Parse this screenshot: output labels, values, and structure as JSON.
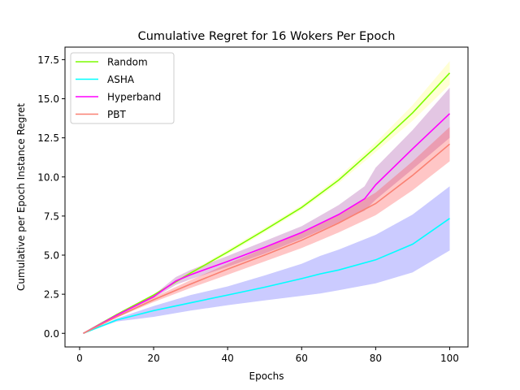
{
  "chart_data": {
    "type": "line",
    "title": "Cumulative Regret for 16 Wokers Per Epoch",
    "xlabel": "Epochs",
    "ylabel": "Cumulative per Epoch Instance Regret",
    "xlim": [
      -3.95,
      104.95
    ],
    "ylim": [
      -0.87,
      18.3
    ],
    "xticks": [
      0,
      20,
      40,
      60,
      80,
      100
    ],
    "xtick_labels": [
      "0",
      "20",
      "40",
      "60",
      "80",
      "100"
    ],
    "yticks": [
      0,
      2.5,
      5,
      7.5,
      10,
      12.5,
      15,
      17.5
    ],
    "ytick_labels": [
      "0.0",
      "2.5",
      "5.0",
      "7.5",
      "10.0",
      "12.5",
      "15.0",
      "17.5"
    ],
    "grid": false,
    "legend_position": "upper-left",
    "series": [
      {
        "name": "Random",
        "color": "#7cfc00",
        "band_color": "#ffff66",
        "x": [
          1,
          10,
          20,
          30,
          40,
          50,
          60,
          70,
          80,
          90,
          100
        ],
        "y": [
          0,
          1.2,
          2.45,
          3.85,
          5.2,
          6.6,
          8.05,
          9.8,
          11.9,
          14.1,
          16.65
        ],
        "lower": [
          0,
          1.15,
          2.4,
          3.75,
          5.05,
          6.45,
          7.9,
          9.6,
          11.6,
          13.6,
          15.9
        ],
        "upper": [
          0,
          1.25,
          2.5,
          3.95,
          5.35,
          6.75,
          8.2,
          10.0,
          12.2,
          14.6,
          17.4
        ]
      },
      {
        "name": "ASHA",
        "color": "#00ffff",
        "band_color": "#4444ff",
        "x": [
          1,
          10,
          20,
          30,
          40,
          50,
          60,
          65,
          70,
          80,
          90,
          100
        ],
        "y": [
          0,
          0.85,
          1.45,
          1.95,
          2.45,
          2.95,
          3.5,
          3.8,
          4.05,
          4.7,
          5.7,
          7.35
        ],
        "lower": [
          0,
          0.75,
          1.05,
          1.45,
          1.8,
          2.1,
          2.4,
          2.55,
          2.75,
          3.2,
          3.9,
          5.3
        ],
        "upper": [
          0,
          0.95,
          1.75,
          2.45,
          3.0,
          3.7,
          4.45,
          4.95,
          5.35,
          6.3,
          7.6,
          9.4
        ]
      },
      {
        "name": "Hyperband",
        "color": "#ff00ff",
        "band_color": "#993399",
        "x": [
          1,
          10,
          20,
          26,
          30,
          40,
          50,
          60,
          70,
          77,
          80,
          90,
          100
        ],
        "y": [
          0,
          1.15,
          2.35,
          3.35,
          3.75,
          4.6,
          5.5,
          6.45,
          7.6,
          8.6,
          9.5,
          11.8,
          14.05
        ],
        "lower": [
          0,
          1.1,
          2.25,
          3.1,
          3.45,
          4.25,
          5.1,
          6.05,
          7.1,
          7.85,
          8.55,
          10.5,
          12.5
        ],
        "upper": [
          0,
          1.2,
          2.45,
          3.6,
          4.05,
          4.95,
          5.9,
          6.85,
          8.2,
          9.4,
          10.6,
          13.0,
          15.7
        ]
      },
      {
        "name": "PBT",
        "color": "#fa8072",
        "band_color": "#ff3333",
        "x": [
          1,
          10,
          20,
          30,
          40,
          50,
          60,
          70,
          80,
          90,
          100
        ],
        "y": [
          0,
          1.05,
          2.15,
          3.15,
          4.1,
          5.0,
          5.95,
          7.05,
          8.3,
          10.1,
          12.1
        ],
        "lower": [
          0,
          1.0,
          2.0,
          2.9,
          3.75,
          4.6,
          5.45,
          6.45,
          7.55,
          9.15,
          11.0
        ],
        "upper": [
          0,
          1.1,
          2.3,
          3.4,
          4.45,
          5.45,
          6.45,
          7.6,
          9.0,
          11.0,
          13.2
        ]
      }
    ]
  }
}
